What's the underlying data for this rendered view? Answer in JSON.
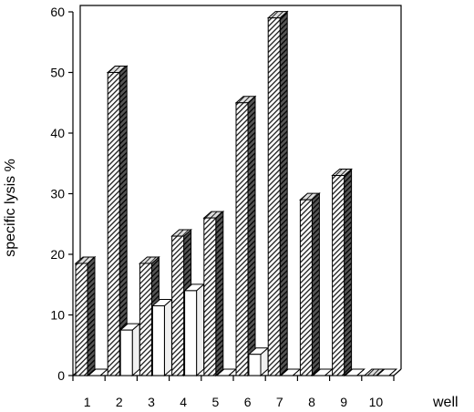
{
  "chart_data": {
    "type": "bar",
    "title": "",
    "xlabel": "well",
    "ylabel": "specific lysis %",
    "categories": [
      "1",
      "2",
      "3",
      "4",
      "5",
      "6",
      "7",
      "8",
      "9",
      "10"
    ],
    "yticks": [
      "0",
      "10",
      "20",
      "30",
      "40",
      "50",
      "60"
    ],
    "ylim": [
      0,
      60
    ],
    "grid": false,
    "legend": "none",
    "series": [
      {
        "values": [
          18.5,
          50,
          18.5,
          23,
          26,
          45,
          59,
          29,
          33,
          0
        ],
        "color": "#333333",
        "pattern": "hatched"
      },
      {
        "values": [
          0,
          7.5,
          11.5,
          14,
          0,
          3.5,
          0,
          0,
          0,
          0
        ],
        "color": "#ffffff",
        "pattern": "none"
      }
    ]
  }
}
